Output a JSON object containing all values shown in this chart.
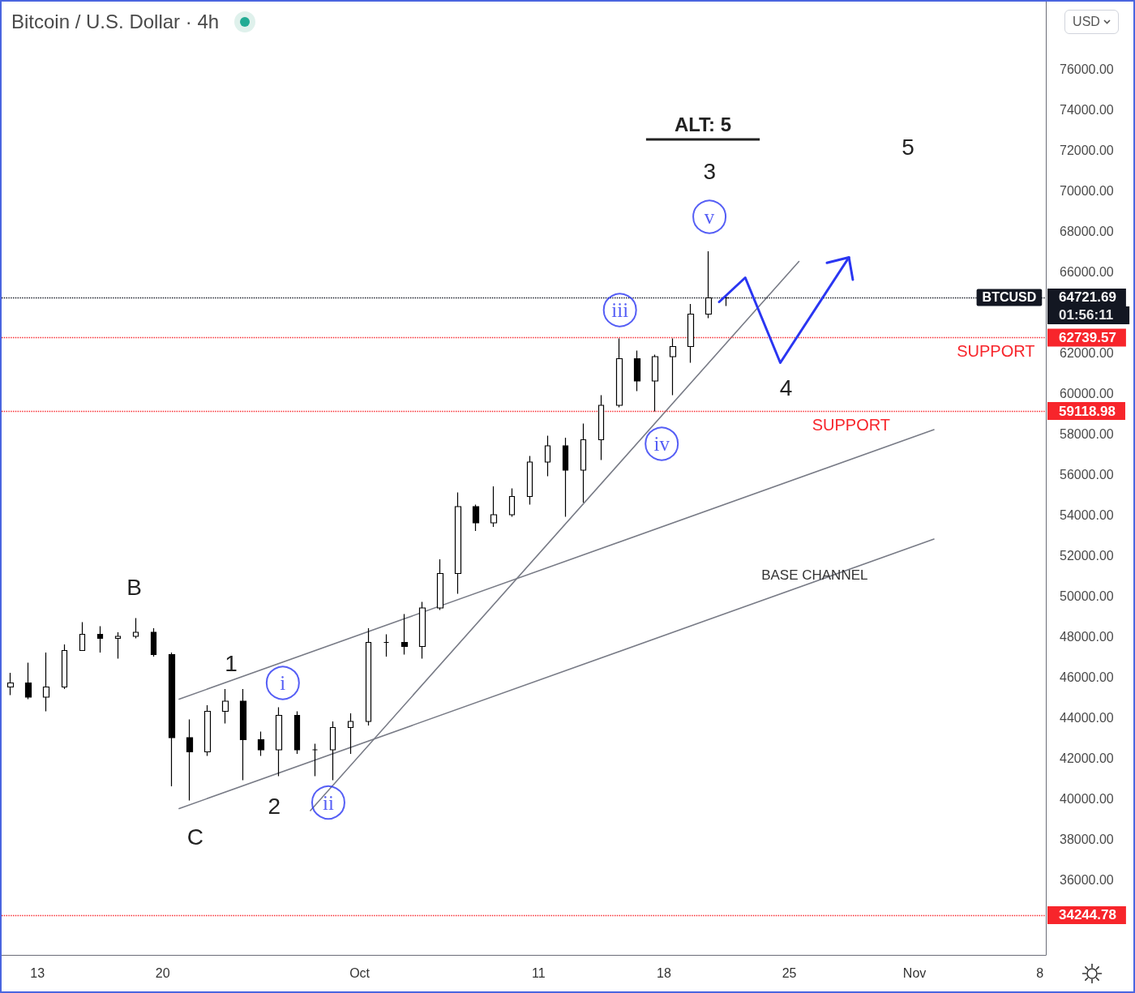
{
  "chart_data": {
    "type": "candlestick",
    "title": "Bitcoin / U.S. Dollar · 4h",
    "ylabel": "USD",
    "color": "#000000",
    "x": [
      "--09-11T12:00",
      "--09-12T12:00",
      "--09-13T12:00",
      "--09-14T12:00",
      "--09-15T12:00",
      "--09-16T12:00",
      "--09-17T12:00",
      "--09-18T12:00",
      "--09-19T12:00",
      "--09-20T12:00",
      "--09-21T12:00",
      "--09-22T12:00",
      "--09-23T12:00",
      "--09-24T12:00",
      "--09-25T12:00",
      "--09-26T12:00",
      "--09-27T12:00",
      "--09-28T12:00",
      "--09-29T12:00",
      "--09-30T12:00",
      "--10-01T12:00",
      "--10-02T12:00",
      "--10-03T12:00",
      "--10-04T12:00",
      "--10-05T12:00",
      "--10-06T12:00",
      "--10-07T12:00",
      "--10-08T12:00",
      "--10-09T12:00",
      "--10-10T12:00",
      "--10-11T12:00",
      "--10-12T12:00",
      "--10-13T12:00",
      "--10-14T12:00",
      "--10-15T12:00",
      "--10-16T12:00",
      "--10-17T12:00",
      "--10-18T12:00",
      "--10-19T12:00",
      "--10-20T12:00",
      "--10-21T12:00"
    ],
    "ohlc": [
      [
        45500,
        46200,
        45100,
        45700
      ],
      [
        45700,
        46700,
        44900,
        45000
      ],
      [
        45000,
        47200,
        44300,
        45500
      ],
      [
        45500,
        47600,
        45400,
        47300
      ],
      [
        47300,
        48700,
        47300,
        48100
      ],
      [
        48100,
        48500,
        47200,
        47900
      ],
      [
        47900,
        48200,
        46900,
        48000
      ],
      [
        48000,
        48900,
        47900,
        48200
      ],
      [
        48200,
        48400,
        47000,
        47100
      ],
      [
        47100,
        47200,
        40600,
        43000
      ],
      [
        43000,
        43900,
        39900,
        42300
      ],
      [
        42300,
        44600,
        42100,
        44300
      ],
      [
        44300,
        45400,
        43700,
        44800
      ],
      [
        44800,
        45400,
        40900,
        42900
      ],
      [
        42900,
        43300,
        42100,
        42400
      ],
      [
        42400,
        44500,
        41100,
        44100
      ],
      [
        44100,
        44300,
        42200,
        42400
      ],
      [
        42400,
        42700,
        41100,
        42400
      ],
      [
        42400,
        43800,
        40900,
        43500
      ],
      [
        43500,
        44200,
        42200,
        43800
      ],
      [
        43800,
        48400,
        43600,
        47700
      ],
      [
        47700,
        48100,
        47000,
        47700
      ],
      [
        47700,
        49100,
        47100,
        47500
      ],
      [
        47500,
        49700,
        46900,
        49400
      ],
      [
        49400,
        51800,
        49300,
        51100
      ],
      [
        51100,
        55100,
        50100,
        54400
      ],
      [
        54400,
        54500,
        53200,
        53600
      ],
      [
        53600,
        55400,
        53400,
        54000
      ],
      [
        54000,
        55300,
        53900,
        54900
      ],
      [
        54900,
        56900,
        54500,
        56600
      ],
      [
        56600,
        57900,
        55900,
        57400
      ],
      [
        57400,
        57800,
        53900,
        56200
      ],
      [
        56200,
        58500,
        54600,
        57700
      ],
      [
        57700,
        59900,
        56700,
        59400
      ],
      [
        59400,
        62700,
        59300,
        61700
      ],
      [
        61700,
        62100,
        60100,
        60600
      ],
      [
        60600,
        61900,
        59100,
        61800
      ],
      [
        61800,
        62700,
        59900,
        62300
      ],
      [
        62300,
        64400,
        61500,
        63900
      ],
      [
        63900,
        67000,
        63700,
        64700
      ],
      [
        64700,
        64800,
        64300,
        64700
      ]
    ],
    "series": [
      {
        "type": "line",
        "color": "#787b86",
        "x": [
          "--09-20T22:00",
          "--11-02T02:00"
        ],
        "values": [
          44900,
          58200
        ]
      },
      {
        "type": "line",
        "color": "#787b86",
        "x": [
          "--09-20T22:00",
          "--11-02T02:00"
        ],
        "values": [
          39500,
          52800
        ]
      },
      {
        "type": "line",
        "color": "#787b86",
        "x": [
          "--09-28T06:00",
          "--10-25T13:00"
        ],
        "values": [
          39400,
          66500
        ]
      },
      {
        "type": "line",
        "color": "#2a36f2",
        "x": [
          "--10-21T02:00",
          "--10-22T13:00",
          "--10-24T12:00",
          "--10-28T08:00"
        ],
        "values": [
          64500,
          65700,
          61500,
          66700
        ]
      },
      {
        "type": "scatter",
        "color": "#2a36f2",
        "marker": "circle",
        "x": [
          "--09-26T17:00",
          "--09-29T06:00",
          "--10-15T13:00",
          "--10-17T21:00",
          "--10-20T13:00"
        ],
        "values": [
          45700,
          39800,
          64100,
          57500,
          68700
        ],
        "value_labels": [
          "i",
          "ii",
          "iii",
          "iv",
          "v"
        ]
      }
    ],
    "ref_lines": [
      {
        "axis": "y",
        "value": 64721.69,
        "label": "64721.69",
        "color": "#131722",
        "line_style": "dotted"
      },
      {
        "axis": "y",
        "value": 62739.57,
        "label": "62739.57",
        "color": "#f7252b",
        "line_style": "dotted"
      },
      {
        "axis": "y",
        "value": 59118.98,
        "label": "59118.98",
        "color": "#f7252b",
        "line_style": "dotted"
      },
      {
        "axis": "y",
        "value": 34244.78,
        "label": "34244.78",
        "color": "#f7252b",
        "line_style": "dotted"
      }
    ],
    "annotations": [
      {
        "text": "BASE CHANNEL",
        "x": "--10-26T10:00",
        "y": 50700
      },
      {
        "text": "BTCUSD",
        "x": "--11-06T07:00",
        "y": 64721.69
      },
      {
        "text": "SUPPORT",
        "x": "--11-05T13:00",
        "y": 62739.57
      },
      {
        "text": "SUPPORT",
        "x": "--10-28T11:00",
        "y": 59118.98
      },
      {
        "text": "B",
        "x": "--09-18T12:00",
        "y": 48900
      },
      {
        "text": "C",
        "x": "--09-21T12:00",
        "y": 39900
      },
      {
        "text": "1",
        "x": "--09-23T12:00",
        "y": 45400
      },
      {
        "text": "2",
        "x": "--09-26T12:00",
        "y": 41100
      },
      {
        "text": "3",
        "x": "--10-20T12:00",
        "y": 67000
      },
      {
        "text": "4",
        "x": "--10-24T12:00",
        "y": 61500
      },
      "ALT: 5",
      "5",
      "01:56:11"
    ],
    "xlim": [
      "--09-11",
      "--11-08T08:00"
    ],
    "xticks": [
      {
        "value": "--09-13",
        "label": "13"
      },
      {
        "value": "--09-20",
        "label": "20"
      },
      {
        "value": "--10-01",
        "label": "Oct"
      },
      {
        "value": "--10-11",
        "label": "11"
      },
      {
        "value": "--10-18",
        "label": "18"
      },
      {
        "value": "--10-25",
        "label": "25"
      },
      {
        "value": "--11-01",
        "label": "Nov"
      },
      {
        "value": "--11-08",
        "label": "8"
      }
    ],
    "ylim": [
      32280,
      79320
    ],
    "yticks": [
      {
        "value": 36000,
        "label": "36000.00"
      },
      {
        "value": 38000,
        "label": "38000.00"
      },
      {
        "value": 40000,
        "label": "40000.00"
      },
      {
        "value": 42000,
        "label": "42000.00"
      },
      {
        "value": 44000,
        "label": "44000.00"
      },
      {
        "value": 46000,
        "label": "46000.00"
      },
      {
        "value": 48000,
        "label": "48000.00"
      },
      {
        "value": 50000,
        "label": "50000.00"
      },
      {
        "value": 52000,
        "label": "52000.00"
      },
      {
        "value": 54000,
        "label": "54000.00"
      },
      {
        "value": 56000,
        "label": "56000.00"
      },
      {
        "value": 58000,
        "label": "58000.00"
      },
      {
        "value": 60000,
        "label": "60000.00"
      },
      {
        "value": 62000,
        "label": "62000.00"
      },
      {
        "value": 66000,
        "label": "66000.00"
      },
      {
        "value": 68000,
        "label": "68000.00"
      },
      {
        "value": 70000,
        "label": "70000.00"
      },
      {
        "value": 72000,
        "label": "72000.00"
      },
      {
        "value": 74000,
        "label": "74000.00"
      },
      {
        "value": 76000,
        "label": "76000.00"
      }
    ]
  }
}
